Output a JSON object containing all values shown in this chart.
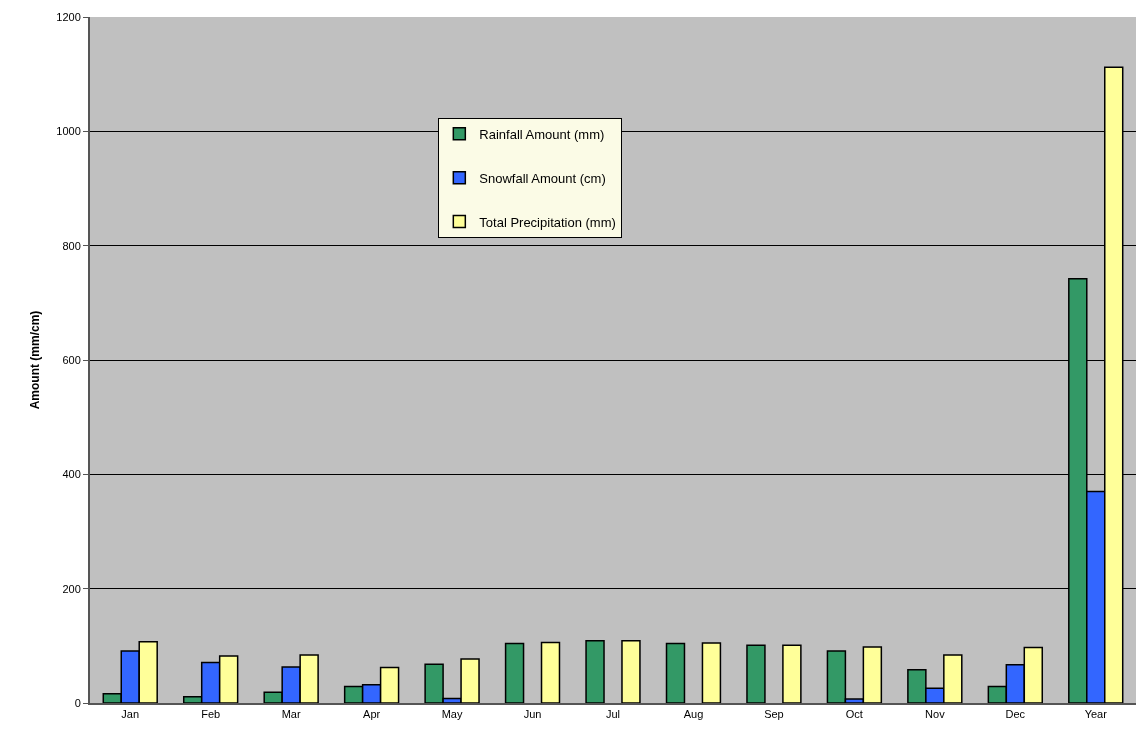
{
  "chart_data": {
    "type": "bar",
    "ylabel": "Amount (mm/cm)",
    "categories": [
      "Jan",
      "Feb",
      "Mar",
      "Apr",
      "May",
      "Jun",
      "Jul",
      "Aug",
      "Sep",
      "Oct",
      "Nov",
      "Dec",
      "Year"
    ],
    "series": [
      {
        "name": "Rainfall Amount (mm)",
        "color": "#339966",
        "values": [
          16,
          11,
          19,
          29,
          68,
          104,
          109,
          104,
          101,
          91,
          58,
          29,
          742
        ]
      },
      {
        "name": "Snowfall Amount (cm)",
        "color": "#3366ff",
        "values": [
          91,
          71,
          63,
          32,
          8,
          null,
          0,
          0,
          0,
          7,
          26,
          67,
          370
        ]
      },
      {
        "name": "Total Precipitation (mm)",
        "color": "#ffff99",
        "values": [
          107,
          82,
          84,
          62,
          77,
          106,
          109,
          105,
          101,
          98,
          84,
          97,
          1112
        ]
      }
    ],
    "ylim": [
      0,
      1200
    ],
    "yticks": [
      0,
      200,
      400,
      600,
      800,
      1000,
      1200
    ],
    "grid": "y",
    "legend": "top"
  }
}
